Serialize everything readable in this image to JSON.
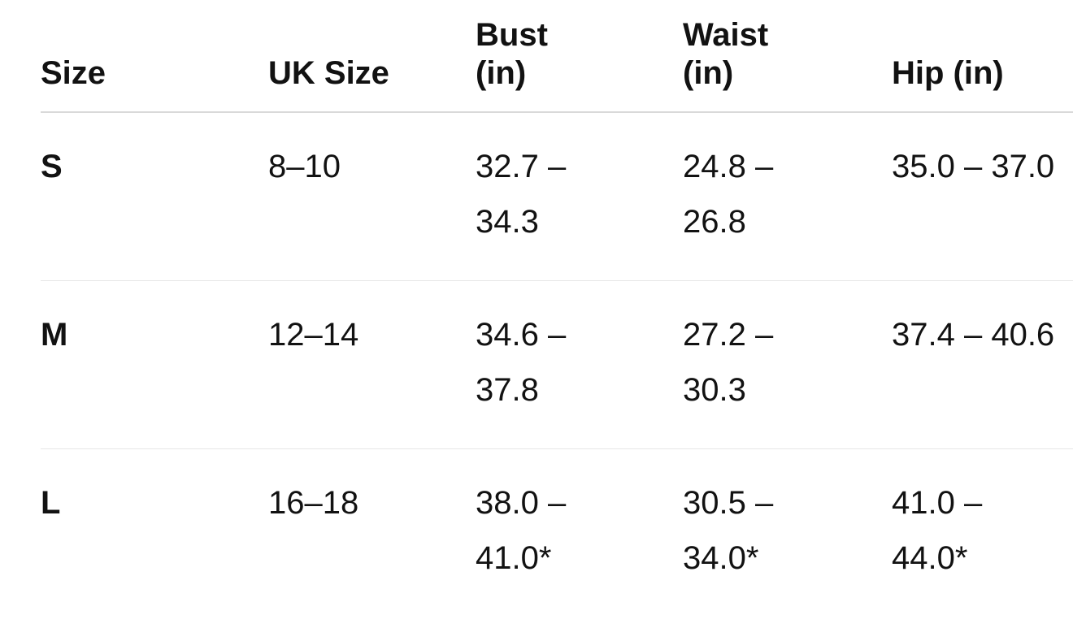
{
  "table": {
    "headers": [
      "Size",
      "UK Size",
      "Bust\n(in)",
      "Waist\n(in)",
      "Hip (in)"
    ],
    "rows": [
      [
        "S",
        "8–10",
        "32.7 –\n34.3",
        "24.8 –\n26.8",
        "35.0 – 37.0"
      ],
      [
        "M",
        "12–14",
        "34.6 –\n37.8",
        "27.2 –\n30.3",
        "37.4 – 40.6"
      ],
      [
        "L",
        "16–18",
        "38.0 –\n41.0*",
        "30.5 –\n34.0*",
        "41.0 –\n44.0*"
      ]
    ]
  }
}
